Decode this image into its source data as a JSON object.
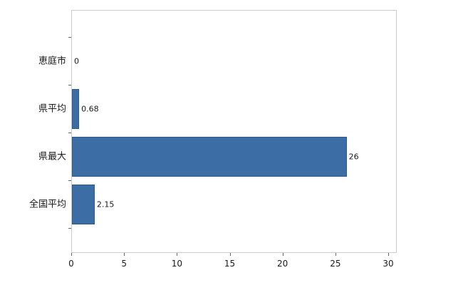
{
  "chart_data": {
    "type": "bar",
    "orientation": "horizontal",
    "title": "",
    "xlabel": "",
    "ylabel": "",
    "categories": [
      "恵庭市",
      "県平均",
      "県最大",
      "全国平均"
    ],
    "values": [
      0,
      0.68,
      26,
      2.15
    ],
    "value_labels": [
      "0",
      "0.68",
      "26",
      "2.15"
    ],
    "xlim": [
      0,
      30
    ],
    "x_ticks": [
      0,
      5,
      10,
      15,
      20,
      25,
      30
    ],
    "grid": false,
    "legend": false,
    "bar_color": "#3d6da5",
    "bar_border_color": "#2d5a8c",
    "plot_border_color": "#cccccc",
    "background_color": "#ffffff"
  }
}
